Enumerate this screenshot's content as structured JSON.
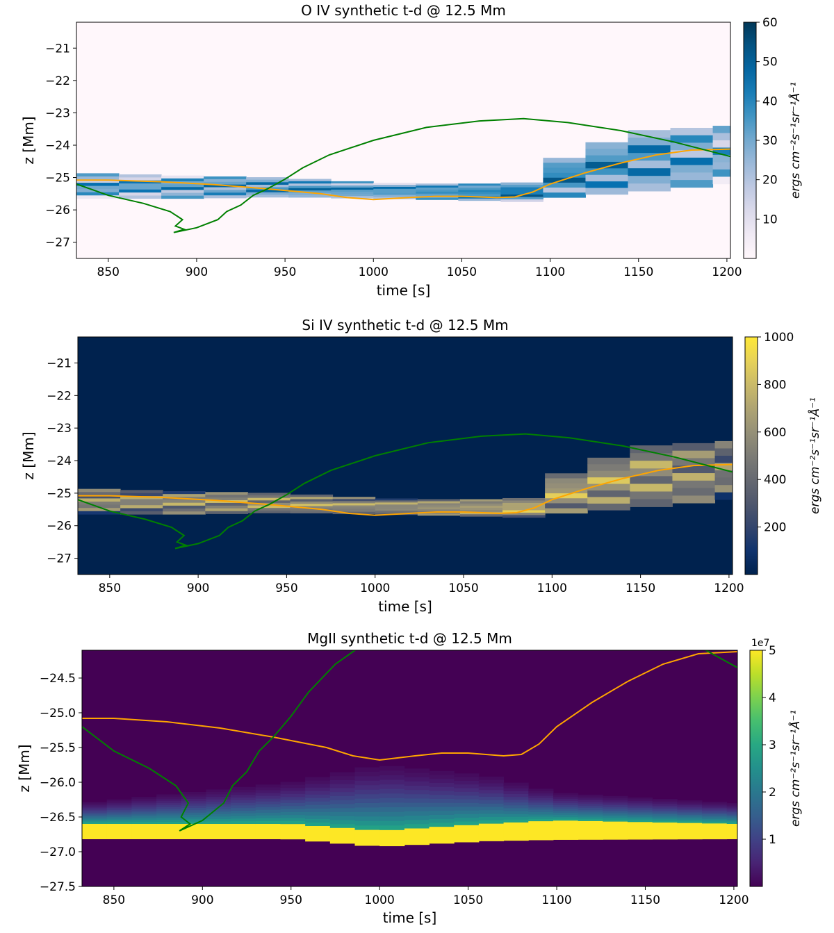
{
  "chart_data": [
    {
      "type": "heatmap",
      "title": "O IV synthetic t-d @ 12.5 Mm",
      "xlabel": "time [s]",
      "ylabel": "z [Mm]",
      "xlim": [
        832,
        1202
      ],
      "ylim": [
        -27.5,
        -20.2
      ],
      "xticks": [
        850,
        900,
        950,
        1000,
        1050,
        1100,
        1150,
        1200
      ],
      "yticks": [
        -27,
        -26,
        -25,
        -24,
        -23,
        -22,
        -21
      ],
      "colormap": "PuBu",
      "background": "#fff7fb",
      "colorbar": {
        "label": "ergs cm⁻²s⁻¹sr⁻¹Å⁻¹",
        "range": [
          0,
          60
        ],
        "ticks": [
          10,
          20,
          30,
          40,
          50,
          60
        ],
        "offset": ""
      },
      "emission_band": [
        {
          "t": 832,
          "zc": -25.25,
          "hw": 0.4,
          "level": 0.5
        },
        {
          "t": 900,
          "zc": -25.3,
          "hw": 0.35,
          "level": 0.55
        },
        {
          "t": 950,
          "zc": -25.3,
          "hw": 0.3,
          "level": 0.6
        },
        {
          "t": 1000,
          "zc": -25.4,
          "hw": 0.25,
          "level": 0.55
        },
        {
          "t": 1050,
          "zc": -25.45,
          "hw": 0.25,
          "level": 0.6
        },
        {
          "t": 1085,
          "zc": -25.45,
          "hw": 0.3,
          "level": 0.7
        },
        {
          "t": 1100,
          "zc": -25.1,
          "hw": 0.55,
          "level": 0.65
        },
        {
          "t": 1150,
          "zc": -24.5,
          "hw": 0.95,
          "level": 0.6
        },
        {
          "t": 1202,
          "zc": -24.3,
          "hw": 0.9,
          "level": 0.45
        }
      ],
      "series": [
        {
          "color": "#ffa500",
          "x": [
            832,
            850,
            880,
            910,
            940,
            970,
            985,
            1000,
            1020,
            1035,
            1050,
            1070,
            1080,
            1090,
            1100,
            1120,
            1140,
            1160,
            1180,
            1202
          ],
          "y": [
            -25.08,
            -25.08,
            -25.13,
            -25.22,
            -25.35,
            -25.5,
            -25.62,
            -25.68,
            -25.62,
            -25.58,
            -25.58,
            -25.62,
            -25.6,
            -25.45,
            -25.2,
            -24.85,
            -24.55,
            -24.3,
            -24.15,
            -24.12
          ]
        },
        {
          "color": "#008000",
          "x": [
            832,
            850,
            870,
            885,
            892,
            888,
            893,
            887,
            900,
            912,
            917,
            925,
            932,
            940,
            950,
            960,
            975,
            1000,
            1030,
            1060,
            1085,
            1110,
            1140,
            1170,
            1202
          ],
          "y": [
            -25.2,
            -25.55,
            -25.8,
            -26.05,
            -26.3,
            -26.5,
            -26.6,
            -26.7,
            -26.55,
            -26.3,
            -26.05,
            -25.85,
            -25.55,
            -25.35,
            -25.05,
            -24.7,
            -24.3,
            -23.85,
            -23.45,
            -23.25,
            -23.18,
            -23.3,
            -23.55,
            -23.9,
            -24.35
          ]
        }
      ]
    },
    {
      "type": "heatmap",
      "title": "Si IV synthetic t-d @ 12.5 Mm",
      "xlabel": "time [s]",
      "ylabel": "z [Mm]",
      "xlim": [
        832,
        1202
      ],
      "ylim": [
        -27.5,
        -20.2
      ],
      "xticks": [
        850,
        900,
        950,
        1000,
        1050,
        1100,
        1150,
        1200
      ],
      "yticks": [
        -27,
        -26,
        -25,
        -24,
        -23,
        -22,
        -21
      ],
      "colormap": "cividis",
      "background": "#00224e",
      "colorbar": {
        "label": "ergs cm⁻²s⁻¹sr⁻¹Å⁻¹",
        "range": [
          0,
          1000
        ],
        "ticks": [
          200,
          400,
          600,
          800,
          1000
        ],
        "offset": ""
      },
      "emission_band": [
        {
          "t": 832,
          "zc": -25.25,
          "hw": 0.4,
          "level": 0.5
        },
        {
          "t": 900,
          "zc": -25.3,
          "hw": 0.35,
          "level": 0.55
        },
        {
          "t": 950,
          "zc": -25.3,
          "hw": 0.3,
          "level": 0.6
        },
        {
          "t": 1000,
          "zc": -25.4,
          "hw": 0.25,
          "level": 0.55
        },
        {
          "t": 1050,
          "zc": -25.45,
          "hw": 0.25,
          "level": 0.6
        },
        {
          "t": 1085,
          "zc": -25.45,
          "hw": 0.3,
          "level": 0.7
        },
        {
          "t": 1100,
          "zc": -25.1,
          "hw": 0.55,
          "level": 0.65
        },
        {
          "t": 1150,
          "zc": -24.5,
          "hw": 0.95,
          "level": 0.6
        },
        {
          "t": 1202,
          "zc": -24.3,
          "hw": 0.9,
          "level": 0.45
        }
      ],
      "series": [
        {
          "color": "#ffa500",
          "x": [
            832,
            850,
            880,
            910,
            940,
            970,
            985,
            1000,
            1020,
            1035,
            1050,
            1070,
            1080,
            1090,
            1100,
            1120,
            1140,
            1160,
            1180,
            1202
          ],
          "y": [
            -25.08,
            -25.08,
            -25.13,
            -25.22,
            -25.35,
            -25.5,
            -25.62,
            -25.68,
            -25.62,
            -25.58,
            -25.58,
            -25.62,
            -25.6,
            -25.45,
            -25.2,
            -24.85,
            -24.55,
            -24.3,
            -24.15,
            -24.12
          ]
        },
        {
          "color": "#008000",
          "x": [
            832,
            850,
            870,
            885,
            892,
            888,
            893,
            887,
            900,
            912,
            917,
            925,
            932,
            940,
            950,
            960,
            975,
            1000,
            1030,
            1060,
            1085,
            1110,
            1140,
            1170,
            1202
          ],
          "y": [
            -25.2,
            -25.55,
            -25.8,
            -26.05,
            -26.3,
            -26.5,
            -26.6,
            -26.7,
            -26.55,
            -26.3,
            -26.05,
            -25.85,
            -25.55,
            -25.35,
            -25.05,
            -24.7,
            -24.3,
            -23.85,
            -23.45,
            -23.25,
            -23.18,
            -23.3,
            -23.55,
            -23.9,
            -24.35
          ]
        }
      ]
    },
    {
      "type": "heatmap",
      "title": "MgII synthetic t-d @ 12.5 Mm",
      "xlabel": "time [s]",
      "ylabel": "z [Mm]",
      "xlim": [
        832,
        1202
      ],
      "ylim": [
        -27.5,
        -24.1
      ],
      "xticks": [
        850,
        900,
        950,
        1000,
        1050,
        1100,
        1150,
        1200
      ],
      "yticks": [
        -27.5,
        -27.0,
        -26.5,
        -26.0,
        -25.5,
        -25.0,
        -24.5
      ],
      "colormap": "viridis",
      "background": "#440154",
      "colorbar": {
        "label": "ergs cm⁻²s⁻¹sr⁻¹Å⁻¹",
        "range": [
          0,
          5
        ],
        "ticks": [
          1,
          2,
          3,
          4,
          5
        ],
        "offset": "1e7"
      },
      "emission_band": [
        {
          "t": 832,
          "top": -26.3,
          "bright": -26.6,
          "bottom": -26.82
        },
        {
          "t": 950,
          "top": -26.0,
          "bright": -26.6,
          "bottom": -26.82
        },
        {
          "t": 1000,
          "top": -25.75,
          "bright": -26.7,
          "bottom": -26.93
        },
        {
          "t": 1060,
          "top": -25.9,
          "bright": -26.6,
          "bottom": -26.85
        },
        {
          "t": 1100,
          "top": -26.15,
          "bright": -26.55,
          "bottom": -26.83
        },
        {
          "t": 1202,
          "top": -26.3,
          "bright": -26.6,
          "bottom": -26.82
        }
      ],
      "series": [
        {
          "color": "#ffa500",
          "x": [
            832,
            850,
            880,
            910,
            940,
            970,
            985,
            1000,
            1020,
            1035,
            1050,
            1070,
            1080,
            1090,
            1100,
            1120,
            1140,
            1160,
            1180,
            1202
          ],
          "y": [
            -25.08,
            -25.08,
            -25.13,
            -25.22,
            -25.35,
            -25.5,
            -25.62,
            -25.68,
            -25.62,
            -25.58,
            -25.58,
            -25.62,
            -25.6,
            -25.45,
            -25.2,
            -24.85,
            -24.55,
            -24.3,
            -24.15,
            -24.12
          ]
        },
        {
          "color": "#008000",
          "x": [
            832,
            850,
            870,
            885,
            892,
            888,
            893,
            887,
            900,
            912,
            917,
            925,
            932,
            940,
            950,
            960,
            975,
            1000,
            1030,
            1060,
            1085,
            1110,
            1140,
            1170,
            1202
          ],
          "y": [
            -25.2,
            -25.55,
            -25.8,
            -26.05,
            -26.3,
            -26.5,
            -26.6,
            -26.7,
            -26.55,
            -26.3,
            -26.05,
            -25.85,
            -25.55,
            -25.35,
            -25.05,
            -24.7,
            -24.3,
            -23.85,
            -23.45,
            -23.25,
            -23.18,
            -23.3,
            -23.55,
            -23.9,
            -24.35
          ]
        }
      ]
    }
  ]
}
